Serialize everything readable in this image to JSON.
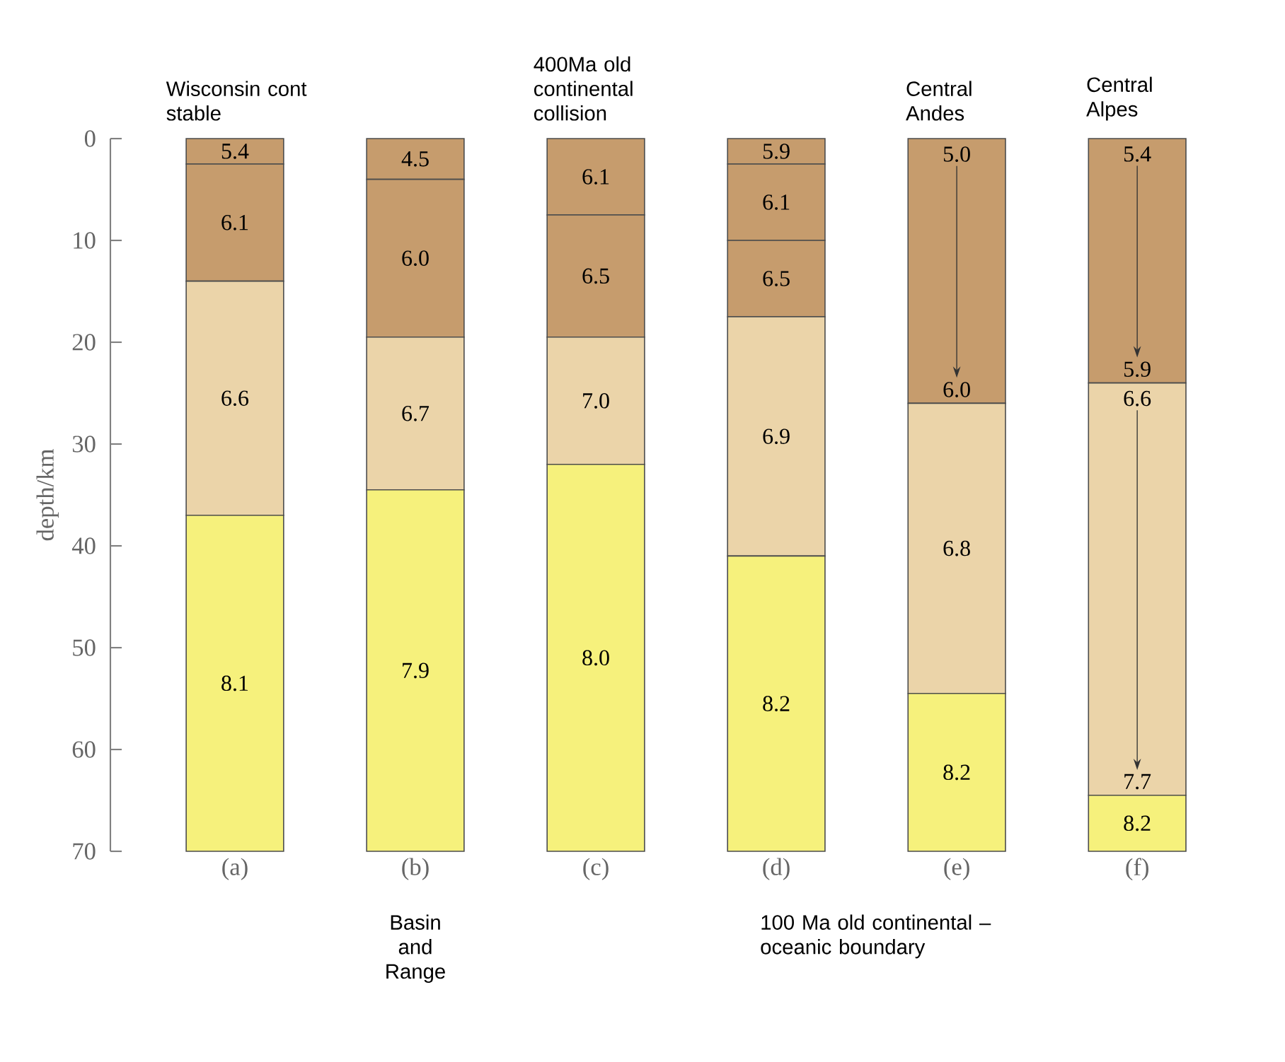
{
  "chart_data": {
    "type": "bar",
    "stacked": true,
    "ylabel": "depth/km",
    "categories": [
      "(a)",
      "(b)",
      "(c)",
      "(d)",
      "(e)",
      "(f)"
    ],
    "ylim": [
      70,
      0
    ],
    "yticks": [
      0,
      10,
      20,
      30,
      40,
      50,
      60,
      70
    ],
    "series": [
      {
        "values": [
          2.5,
          4,
          7.5,
          2.5,
          26,
          24
        ],
        "colors": [
          "#c69c6d",
          "#c69c6d",
          "#c69c6d",
          "#c69c6d",
          "#c69c6d",
          "#c69c6d"
        ]
      },
      {
        "values": [
          11.5,
          15.5,
          12,
          7.5,
          28.5,
          40.5
        ],
        "colors": [
          "#c69c6d",
          "#c69c6d",
          "#c69c6d",
          "#c69c6d",
          "#ebd4a9",
          "#ebd4a9"
        ]
      },
      {
        "values": [
          23,
          15,
          12.5,
          7.5,
          15.5,
          5.5
        ],
        "colors": [
          "#ebd4a9",
          "#ebd4a9",
          "#ebd4a9",
          "#c69c6d",
          "#f6f17c",
          "#f6f17c"
        ]
      },
      {
        "values": [
          33,
          35.5,
          38,
          23.5,
          null,
          null
        ],
        "colors": [
          "#f6f17c",
          "#f6f17c",
          "#f6f17c",
          "#ebd4a9",
          null,
          null
        ]
      },
      {
        "values": [
          null,
          null,
          null,
          29,
          null,
          null
        ],
        "colors": [
          null,
          null,
          null,
          "#f6f17c",
          null,
          null
        ]
      }
    ],
    "annotations": [
      "Wisconsin cont stable",
      "Basin and Range",
      "400Ma old continental collision",
      "100 Ma old continental – oceanic boundary",
      "Central Andes",
      "Central Alpes",
      "5.4",
      "6.1",
      "6.6",
      "8.1",
      "4.5",
      "6.0",
      "6.7",
      "7.9",
      "6.1",
      "6.5",
      "7.0",
      "8.0",
      "5.9",
      "6.1",
      "6.5",
      "6.9",
      "8.2",
      "5.0",
      "6.0",
      "6.8",
      "8.2",
      "5.4",
      "5.9",
      "6.6",
      "7.7",
      "8.2"
    ]
  }
}
